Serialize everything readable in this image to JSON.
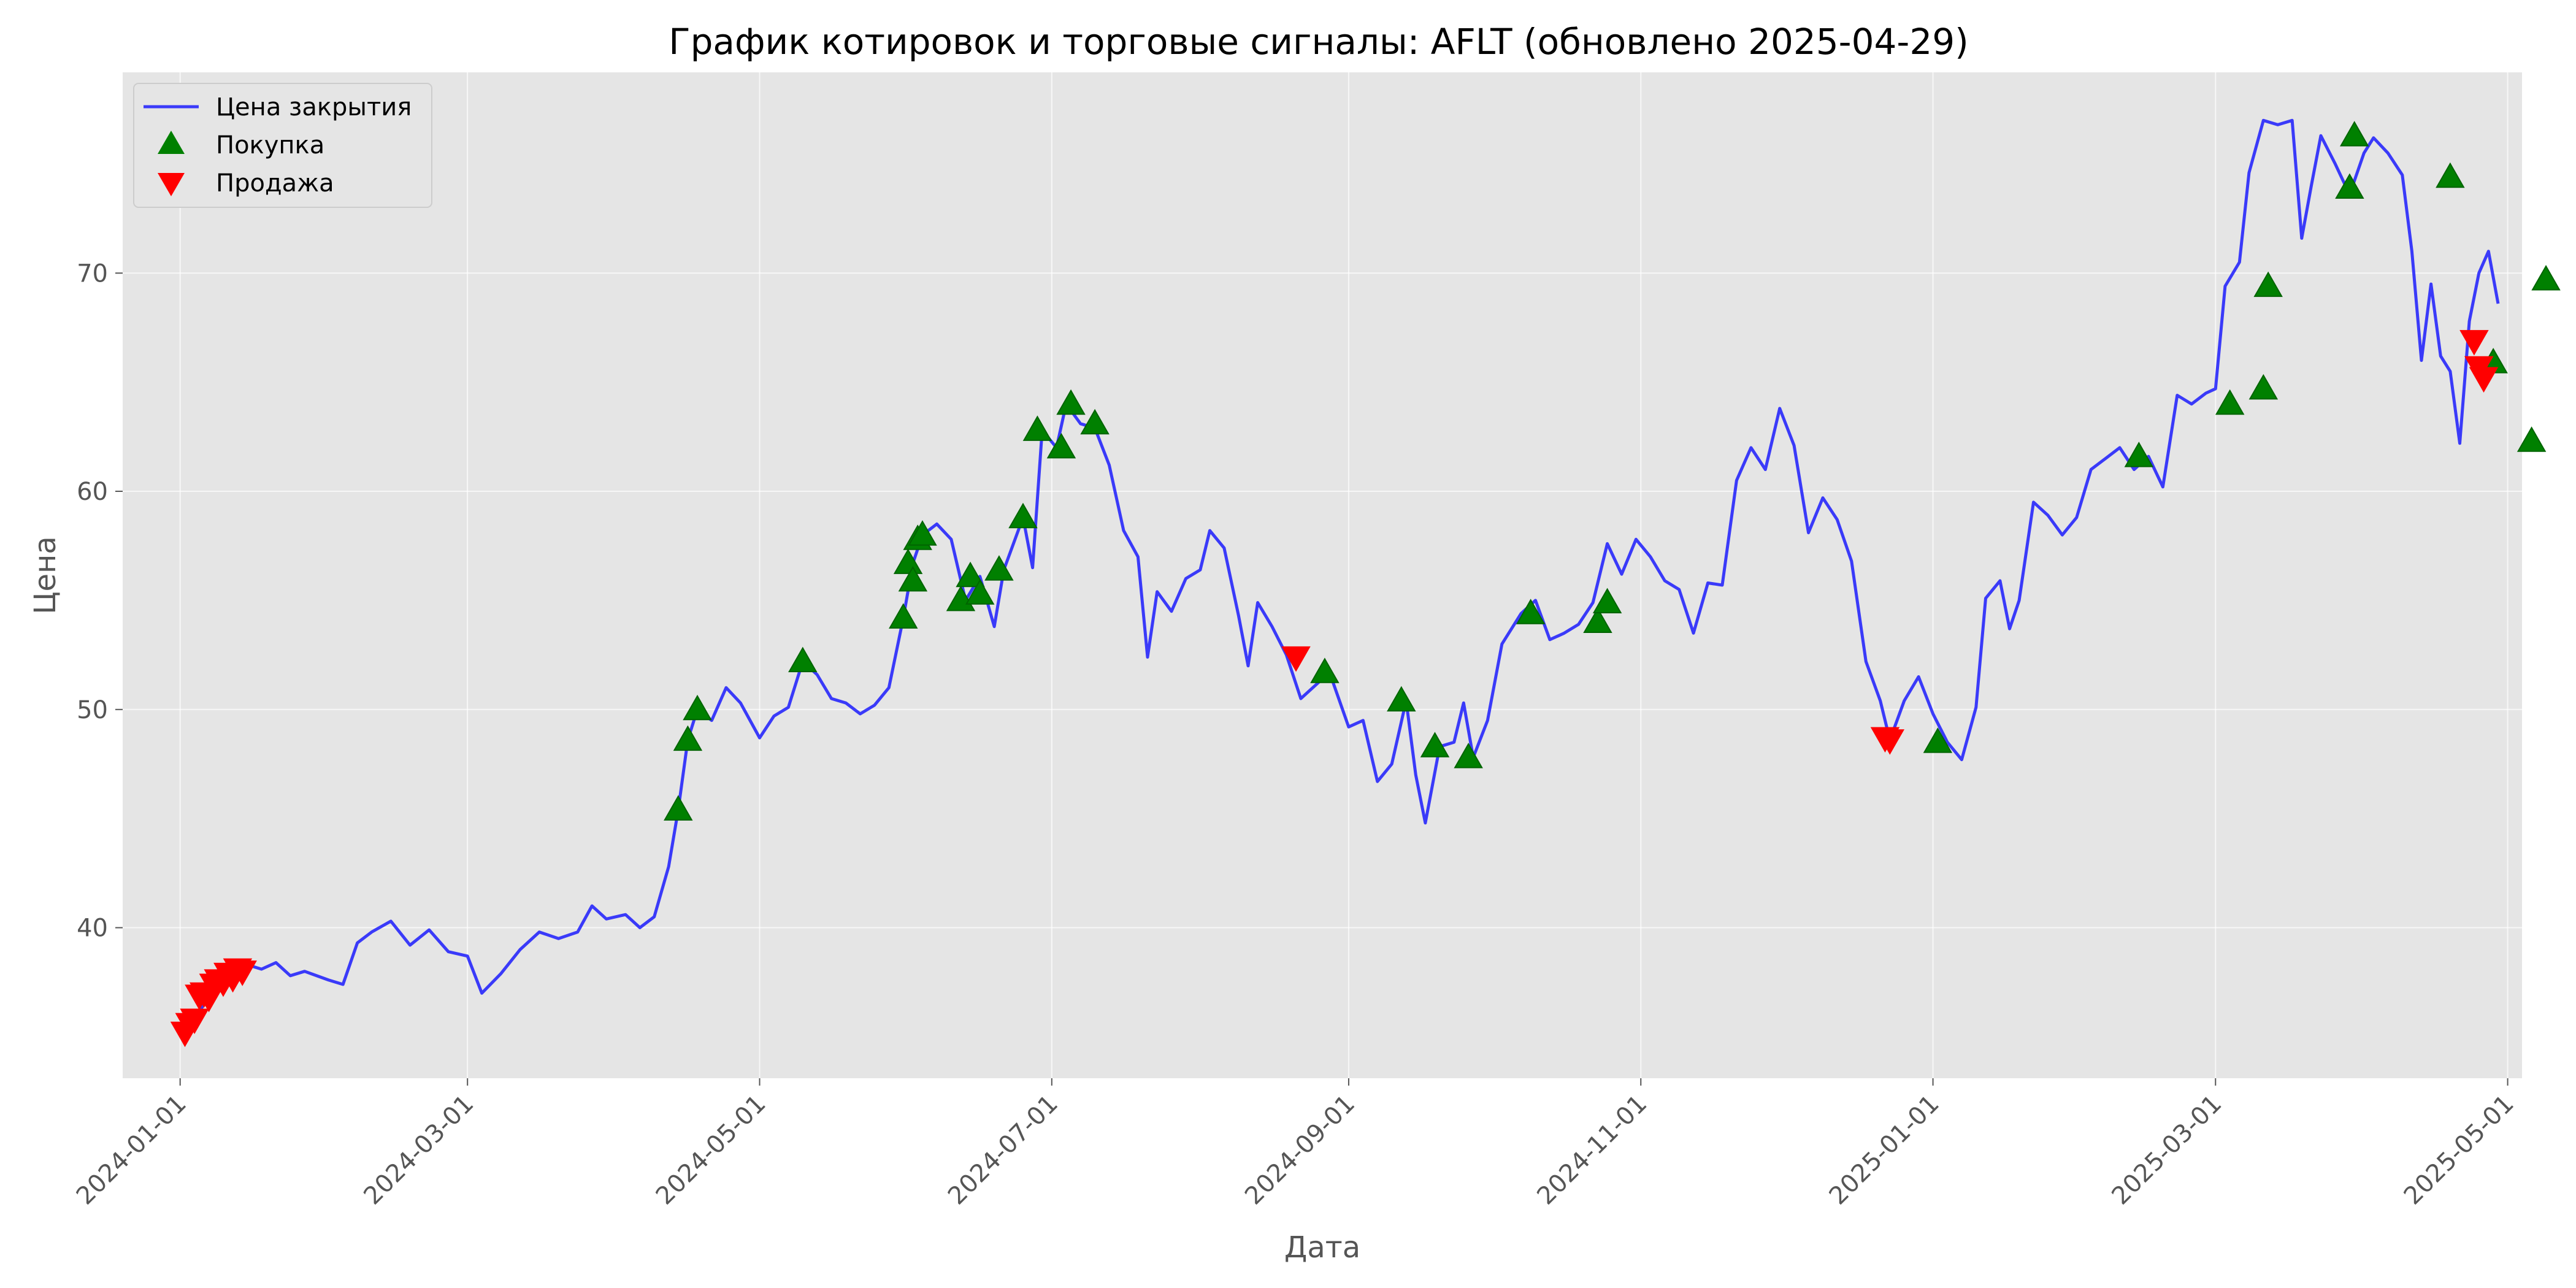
{
  "chart_data": {
    "type": "line",
    "title": "График котировок и торговые сигналы: AFLT (обновлено 2025-04-29)",
    "xlabel": "Дата",
    "ylabel": "Цена",
    "xlim": [
      "2023-12-20",
      "2025-05-04"
    ],
    "ylim": [
      33.1,
      79.2
    ],
    "x_ticks": [
      "2024-01-01",
      "2024-03-01",
      "2024-05-01",
      "2024-07-01",
      "2024-09-01",
      "2024-11-01",
      "2025-01-01",
      "2025-03-01",
      "2025-05-01"
    ],
    "y_ticks": [
      40,
      50,
      60,
      70
    ],
    "grid": true,
    "legend": "top-left",
    "series": [
      {
        "name": "Цена закрытия",
        "type": "line",
        "color": "#0000ff",
        "points": [
          [
            "2024-01-03",
            35.4
          ],
          [
            "2024-01-06",
            36.5
          ],
          [
            "2024-01-09",
            37.2
          ],
          [
            "2024-01-12",
            38.0
          ],
          [
            "2024-01-15",
            38.3
          ],
          [
            "2024-01-18",
            38.1
          ],
          [
            "2024-01-21",
            38.4
          ],
          [
            "2024-01-24",
            37.8
          ],
          [
            "2024-01-27",
            38.0
          ],
          [
            "2024-02-01",
            37.6
          ],
          [
            "2024-02-04",
            37.4
          ],
          [
            "2024-02-07",
            39.3
          ],
          [
            "2024-02-10",
            39.8
          ],
          [
            "2024-02-14",
            40.3
          ],
          [
            "2024-02-18",
            39.2
          ],
          [
            "2024-02-22",
            39.9
          ],
          [
            "2024-02-26",
            38.9
          ],
          [
            "2024-03-01",
            38.7
          ],
          [
            "2024-03-04",
            37.0
          ],
          [
            "2024-03-08",
            37.9
          ],
          [
            "2024-03-12",
            39.0
          ],
          [
            "2024-03-16",
            39.8
          ],
          [
            "2024-03-20",
            39.5
          ],
          [
            "2024-03-24",
            39.8
          ],
          [
            "2024-03-27",
            41.0
          ],
          [
            "2024-03-30",
            40.4
          ],
          [
            "2024-04-03",
            40.6
          ],
          [
            "2024-04-06",
            40.0
          ],
          [
            "2024-04-09",
            40.5
          ],
          [
            "2024-04-12",
            42.8
          ],
          [
            "2024-04-14",
            45.4
          ],
          [
            "2024-04-16",
            48.6
          ],
          [
            "2024-04-18",
            50.0
          ],
          [
            "2024-04-21",
            49.5
          ],
          [
            "2024-04-24",
            51.0
          ],
          [
            "2024-04-27",
            50.3
          ],
          [
            "2024-05-01",
            48.7
          ],
          [
            "2024-05-04",
            49.7
          ],
          [
            "2024-05-07",
            50.1
          ],
          [
            "2024-05-10",
            52.2
          ],
          [
            "2024-05-13",
            51.6
          ],
          [
            "2024-05-16",
            50.5
          ],
          [
            "2024-05-19",
            50.3
          ],
          [
            "2024-05-22",
            49.8
          ],
          [
            "2024-05-25",
            50.2
          ],
          [
            "2024-05-28",
            51.0
          ],
          [
            "2024-05-31",
            54.2
          ],
          [
            "2024-06-02",
            56.7
          ],
          [
            "2024-06-04",
            58.0
          ],
          [
            "2024-06-07",
            58.5
          ],
          [
            "2024-06-10",
            57.8
          ],
          [
            "2024-06-13",
            55.0
          ],
          [
            "2024-06-16",
            56.1
          ],
          [
            "2024-06-19",
            53.8
          ],
          [
            "2024-06-21",
            56.4
          ],
          [
            "2024-06-25",
            58.8
          ],
          [
            "2024-06-27",
            56.5
          ],
          [
            "2024-06-29",
            62.8
          ],
          [
            "2024-07-02",
            62.0
          ],
          [
            "2024-07-04",
            64.0
          ],
          [
            "2024-07-07",
            63.1
          ],
          [
            "2024-07-10",
            62.9
          ],
          [
            "2024-07-13",
            61.2
          ],
          [
            "2024-07-16",
            58.2
          ],
          [
            "2024-07-19",
            57.0
          ],
          [
            "2024-07-21",
            52.4
          ],
          [
            "2024-07-23",
            55.4
          ],
          [
            "2024-07-26",
            54.5
          ],
          [
            "2024-07-29",
            56.0
          ],
          [
            "2024-08-01",
            56.4
          ],
          [
            "2024-08-03",
            58.2
          ],
          [
            "2024-08-06",
            57.4
          ],
          [
            "2024-08-09",
            54.3
          ],
          [
            "2024-08-11",
            52.0
          ],
          [
            "2024-08-13",
            54.9
          ],
          [
            "2024-08-16",
            53.8
          ],
          [
            "2024-08-19",
            52.5
          ],
          [
            "2024-08-22",
            50.5
          ],
          [
            "2024-08-25",
            51.1
          ],
          [
            "2024-08-28",
            51.7
          ],
          [
            "2024-09-01",
            49.2
          ],
          [
            "2024-09-04",
            49.5
          ],
          [
            "2024-09-07",
            46.7
          ],
          [
            "2024-09-10",
            47.5
          ],
          [
            "2024-09-13",
            50.4
          ],
          [
            "2024-09-15",
            47.0
          ],
          [
            "2024-09-17",
            44.8
          ],
          [
            "2024-09-20",
            48.3
          ],
          [
            "2024-09-23",
            48.5
          ],
          [
            "2024-09-25",
            50.3
          ],
          [
            "2024-09-27",
            47.8
          ],
          [
            "2024-09-30",
            49.5
          ],
          [
            "2024-10-03",
            53.0
          ],
          [
            "2024-10-07",
            54.4
          ],
          [
            "2024-10-10",
            55.0
          ],
          [
            "2024-10-13",
            53.2
          ],
          [
            "2024-10-16",
            53.5
          ],
          [
            "2024-10-19",
            53.9
          ],
          [
            "2024-10-22",
            54.9
          ],
          [
            "2024-10-25",
            57.6
          ],
          [
            "2024-10-28",
            56.2
          ],
          [
            "2024-10-31",
            57.8
          ],
          [
            "2024-11-03",
            57.0
          ],
          [
            "2024-11-06",
            55.9
          ],
          [
            "2024-11-09",
            55.5
          ],
          [
            "2024-11-12",
            53.5
          ],
          [
            "2024-11-15",
            55.8
          ],
          [
            "2024-11-18",
            55.7
          ],
          [
            "2024-11-21",
            60.5
          ],
          [
            "2024-11-24",
            62.0
          ],
          [
            "2024-11-27",
            61.0
          ],
          [
            "2024-11-30",
            63.8
          ],
          [
            "2024-12-03",
            62.1
          ],
          [
            "2024-12-06",
            58.1
          ],
          [
            "2024-12-09",
            59.7
          ],
          [
            "2024-12-12",
            58.7
          ],
          [
            "2024-12-15",
            56.8
          ],
          [
            "2024-12-18",
            52.2
          ],
          [
            "2024-12-21",
            50.4
          ],
          [
            "2024-12-23",
            48.6
          ],
          [
            "2024-12-26",
            50.4
          ],
          [
            "2024-12-29",
            51.5
          ],
          [
            "2025-01-01",
            49.8
          ],
          [
            "2025-01-04",
            48.5
          ],
          [
            "2025-01-07",
            47.7
          ],
          [
            "2025-01-10",
            50.1
          ],
          [
            "2025-01-12",
            55.1
          ],
          [
            "2025-01-15",
            55.9
          ],
          [
            "2025-01-17",
            53.7
          ],
          [
            "2025-01-19",
            55.0
          ],
          [
            "2025-01-22",
            59.5
          ],
          [
            "2025-01-25",
            58.9
          ],
          [
            "2025-01-28",
            58.0
          ],
          [
            "2025-01-31",
            58.8
          ],
          [
            "2025-02-03",
            61.0
          ],
          [
            "2025-02-06",
            61.5
          ],
          [
            "2025-02-09",
            62.0
          ],
          [
            "2025-02-12",
            61.0
          ],
          [
            "2025-02-15",
            61.6
          ],
          [
            "2025-02-18",
            60.2
          ],
          [
            "2025-02-21",
            64.4
          ],
          [
            "2025-02-24",
            64.0
          ],
          [
            "2025-02-27",
            64.5
          ],
          [
            "2025-03-01",
            64.7
          ],
          [
            "2025-03-03",
            69.4
          ],
          [
            "2025-03-06",
            70.5
          ],
          [
            "2025-03-08",
            74.6
          ],
          [
            "2025-03-11",
            77.0
          ],
          [
            "2025-03-14",
            76.8
          ],
          [
            "2025-03-17",
            77.0
          ],
          [
            "2025-03-19",
            71.6
          ],
          [
            "2025-03-21",
            74.0
          ],
          [
            "2025-03-23",
            76.3
          ],
          [
            "2025-03-26",
            75.0
          ],
          [
            "2025-03-29",
            73.6
          ],
          [
            "2025-04-01",
            75.5
          ],
          [
            "2025-04-03",
            76.2
          ],
          [
            "2025-04-06",
            75.5
          ],
          [
            "2025-04-09",
            74.5
          ],
          [
            "2025-04-11",
            71.0
          ],
          [
            "2025-04-13",
            66.0
          ],
          [
            "2025-04-15",
            69.5
          ],
          [
            "2025-04-17",
            66.2
          ],
          [
            "2025-04-19",
            65.5
          ],
          [
            "2025-04-21",
            62.2
          ],
          [
            "2025-04-23",
            67.8
          ],
          [
            "2025-04-25",
            70.0
          ],
          [
            "2025-04-27",
            71.0
          ],
          [
            "2025-04-29",
            68.6
          ]
        ]
      },
      {
        "name": "Покупка",
        "type": "scatter",
        "marker": "triangle-up",
        "color": "#008000",
        "points": [
          [
            "2024-04-14",
            45.4
          ],
          [
            "2024-04-16",
            48.6
          ],
          [
            "2024-04-18",
            50.0
          ],
          [
            "2024-05-10",
            52.2
          ],
          [
            "2024-05-31",
            54.2
          ],
          [
            "2024-06-01",
            56.7
          ],
          [
            "2024-06-02",
            55.9
          ],
          [
            "2024-06-03",
            57.8
          ],
          [
            "2024-06-04",
            58.0
          ],
          [
            "2024-06-12",
            55.0
          ],
          [
            "2024-06-14",
            56.1
          ],
          [
            "2024-06-16",
            55.3
          ],
          [
            "2024-06-20",
            56.4
          ],
          [
            "2024-06-25",
            58.8
          ],
          [
            "2024-06-28",
            62.8
          ],
          [
            "2024-07-03",
            62.0
          ],
          [
            "2024-07-05",
            64.0
          ],
          [
            "2024-07-10",
            63.1
          ],
          [
            "2024-08-27",
            51.7
          ],
          [
            "2024-09-12",
            50.4
          ],
          [
            "2024-09-19",
            48.3
          ],
          [
            "2024-09-26",
            47.8
          ],
          [
            "2024-10-09",
            54.4
          ],
          [
            "2024-10-23",
            54.0
          ],
          [
            "2024-10-25",
            54.9
          ],
          [
            "2025-01-02",
            48.5
          ],
          [
            "2025-02-13",
            61.6
          ],
          [
            "2025-03-04",
            64.0
          ],
          [
            "2025-03-11",
            64.7
          ],
          [
            "2025-03-12",
            69.4
          ],
          [
            "2025-03-29",
            73.9
          ],
          [
            "2025-03-30",
            76.3
          ],
          [
            "2025-04-19",
            74.4
          ],
          [
            "2025-04-28",
            65.9
          ],
          [
            "2025-05-06",
            62.3
          ],
          [
            "2025-05-09",
            69.7
          ]
        ]
      },
      {
        "name": "Продажа",
        "type": "scatter",
        "marker": "triangle-down",
        "color": "#ff0000",
        "points": [
          [
            "2024-01-02",
            35.2
          ],
          [
            "2024-01-03",
            35.6
          ],
          [
            "2024-01-04",
            35.8
          ],
          [
            "2024-01-05",
            36.9
          ],
          [
            "2024-01-06",
            37.0
          ],
          [
            "2024-01-07",
            36.8
          ],
          [
            "2024-01-08",
            37.4
          ],
          [
            "2024-01-09",
            37.6
          ],
          [
            "2024-01-10",
            37.5
          ],
          [
            "2024-01-11",
            37.9
          ],
          [
            "2024-01-12",
            37.7
          ],
          [
            "2024-01-13",
            38.1
          ],
          [
            "2024-01-14",
            38.0
          ],
          [
            "2024-08-21",
            52.4
          ],
          [
            "2024-12-22",
            48.7
          ],
          [
            "2024-12-23",
            48.6
          ],
          [
            "2025-04-24",
            66.9
          ],
          [
            "2025-04-25",
            65.7
          ],
          [
            "2025-04-26",
            65.2
          ]
        ]
      }
    ]
  }
}
